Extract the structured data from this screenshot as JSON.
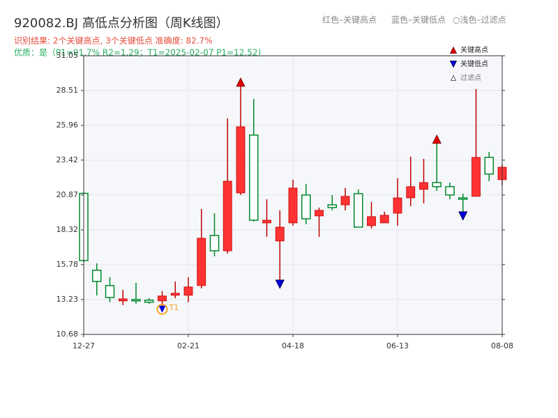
{
  "chart_data": {
    "type": "candlestick",
    "title": "920082.BJ 高低点分析图（周K线图）",
    "header_notes": [
      "红色–关键高点",
      "蓝色–关键低点",
      "○浅色–过滤点"
    ],
    "subtitle": "识别结果: 2个关键高点, 3个关键低点  准确度: 82.7%",
    "subtitle2": "优质：是（P1=91.7%  R2=1.29；T1=2025-02-07 P1=12.52)",
    "categories": [
      "12-27",
      null,
      null,
      null,
      null,
      null,
      null,
      null,
      "02-21",
      null,
      null,
      null,
      null,
      null,
      null,
      null,
      "04-18",
      null,
      null,
      null,
      null,
      null,
      null,
      null,
      "06-13",
      null,
      null,
      null,
      null,
      null,
      null,
      null,
      "08-08"
    ],
    "open": [
      20.99,
      15.37,
      14.25,
      13.13,
      13.23,
      13.18,
      13.13,
      13.54,
      13.54,
      14.25,
      17.91,
      16.79,
      21.02,
      25.25,
      18.83,
      17.51,
      18.83,
      20.87,
      19.34,
      20.15,
      20.15,
      20.97,
      18.63,
      18.83,
      19.54,
      20.66,
      21.28,
      21.78,
      21.48,
      20.66,
      20.77,
      23.62,
      21.99
    ],
    "high": [
      21.07,
      15.88,
      14.86,
      13.94,
      14.45,
      13.33,
      13.84,
      14.55,
      14.86,
      19.85,
      19.54,
      26.47,
      28.81,
      27.89,
      20.56,
      19.75,
      21.99,
      21.68,
      19.95,
      20.87,
      21.38,
      21.28,
      20.36,
      19.65,
      22.09,
      23.67,
      23.51,
      24.64,
      21.78,
      20.97,
      28.61,
      24.02,
      23.11
    ],
    "low": [
      15.98,
      13.53,
      13.03,
      12.82,
      12.92,
      12.92,
      12.52,
      13.33,
      13.03,
      14.04,
      16.39,
      16.59,
      20.87,
      18.93,
      17.81,
      14.66,
      18.63,
      18.73,
      17.81,
      19.75,
      19.75,
      18.52,
      18.42,
      18.98,
      18.63,
      20.05,
      20.26,
      21.17,
      20.56,
      19.65,
      20.77,
      21.88,
      21.58
    ],
    "close": [
      16.08,
      14.55,
      13.38,
      13.28,
      13.13,
      13.03,
      13.49,
      13.69,
      14.15,
      17.71,
      16.79,
      21.88,
      25.86,
      19.03,
      19.03,
      18.52,
      21.38,
      19.13,
      19.75,
      19.95,
      20.77,
      18.52,
      19.29,
      19.39,
      20.66,
      21.48,
      21.78,
      21.48,
      20.87,
      20.56,
      23.62,
      22.4,
      22.9
    ],
    "up_color": "#ff3333",
    "down_color": "#00882e",
    "key_highs": [
      12,
      27
    ],
    "key_lows": [
      15,
      29
    ],
    "t1": {
      "index": 6,
      "label": "T1"
    },
    "high_color": "#e00000",
    "low_color": "#0000dd",
    "t1_color": "#f5a623",
    "legend": [
      "关键高点",
      "关键低点",
      "过滤点"
    ],
    "legend_position": "upper right",
    "ylim": [
      10.68,
      31.05
    ],
    "yticks": [
      10.68,
      13.23,
      15.78,
      18.32,
      20.87,
      23.42,
      25.96,
      28.51,
      31.05
    ],
    "grid": true
  }
}
